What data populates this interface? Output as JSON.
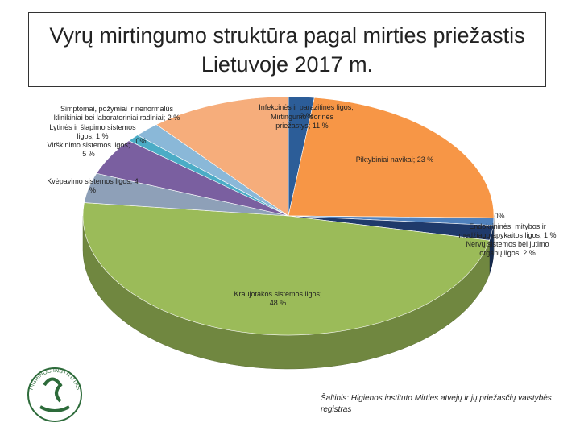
{
  "chart_data": {
    "type": "pie3d",
    "title": "Vyrų mirtingumo struktūra pagal mirties priežastis Lietuvoje 2017 m.",
    "categories": [
      "Infekcinės ir parazitinės ligos",
      "Piktybiniai navikai",
      null,
      "Endokrininės, mitybos ir medžiagų apykaitos ligos",
      "Nervų sistemos bei jutimo organų ligos",
      "Kraujotakos sistemos ligos",
      "Kvėpavimo sistemos ligos",
      "Virškinimo sistemos ligos",
      "Lytinės ir šlapimo sistemos ligos",
      null,
      "Simptomai, požymiai ir nenormalūs klinikiniai bei laboratoriniai radiniai",
      "Mirtingumo išorinės priežastys"
    ],
    "values": [
      2,
      23,
      0,
      1,
      2,
      48,
      4,
      5,
      1,
      0,
      2,
      11
    ],
    "value_labels": [
      "2 %",
      "23 %",
      "0%",
      "1 %",
      "2 %",
      "48 %",
      "4 %",
      "5 %",
      "1 %",
      "0%",
      "2 %",
      "11 %"
    ],
    "colors": [
      "#2c5d98",
      "#f79646",
      "#7f7f7f",
      "#4f81bd",
      "#1f3a6b",
      "#9bbb59",
      "#8ea0b8",
      "#7a5fa0",
      "#4bacc6",
      "#b7c9e2",
      "#8ab8d8",
      "#f6ad7b"
    ],
    "source": "Šaltinis: Higienos instituto Mirties atvejų ir jų priežasčių valstybės registras",
    "logo_text": "HIGIENOS INSTITUTAS"
  }
}
